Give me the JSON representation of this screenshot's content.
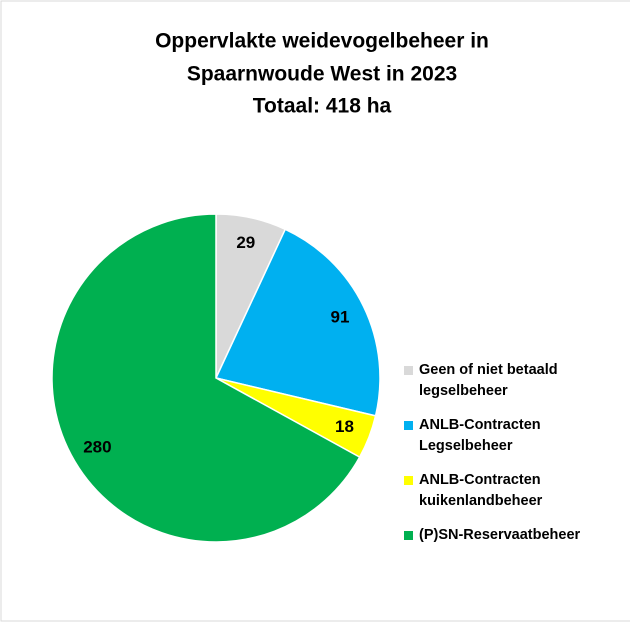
{
  "chart_data": {
    "type": "pie",
    "title": [
      "Oppervlakte weidevogelbeheer in",
      "Spaarnwoude West in 2023",
      "Totaal: 418 ha"
    ],
    "categories": [
      "Geen of niet betaald legselbeheer",
      "ANLB-Contracten Legselbeheer",
      "ANLB-Contracten kuikenlandbeheer",
      "(P)SN-Reservaatbeheer"
    ],
    "values": [
      29,
      91,
      18,
      280
    ],
    "colors": [
      "#d9d9d9",
      "#00b0f0",
      "#ffff00",
      "#00b050"
    ],
    "legend": "right"
  }
}
